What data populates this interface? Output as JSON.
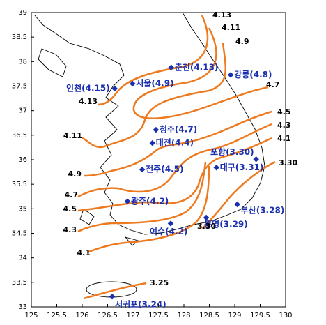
{
  "map": {
    "xlim": [
      125,
      130
    ],
    "ylim": [
      33,
      39
    ],
    "xticks": [
      125,
      125.5,
      126,
      126.5,
      127,
      127.5,
      128,
      128.5,
      129,
      129.5,
      130
    ],
    "yticks": [
      33,
      33.5,
      34,
      34.5,
      35,
      35.5,
      36,
      36.5,
      37,
      37.5,
      38,
      38.5,
      39
    ],
    "marker_color": "#1a2fb0",
    "stations": [
      {
        "label": "춘천(4.13)",
        "lon": 127.75,
        "lat": 37.88
      },
      {
        "label": "강릉(4.8)",
        "lon": 128.92,
        "lat": 37.73
      },
      {
        "label": "인천(4.15)",
        "lon": 126.64,
        "lat": 37.45
      },
      {
        "label": "서울(4.9)",
        "lon": 126.99,
        "lat": 37.55
      },
      {
        "label": "청주(4.7)",
        "lon": 127.45,
        "lat": 36.61
      },
      {
        "label": "대전(4.4)",
        "lon": 127.38,
        "lat": 36.34
      },
      {
        "label": "포항(3.30)",
        "lon": 129.42,
        "lat": 36.01
      },
      {
        "label": "대구(3.31)",
        "lon": 128.64,
        "lat": 35.84
      },
      {
        "label": "전주(4.5)",
        "lon": 127.18,
        "lat": 35.8
      },
      {
        "label": "광주(4.2)",
        "lon": 126.89,
        "lat": 35.15
      },
      {
        "label": "부산(3.28)",
        "lon": 129.05,
        "lat": 35.09
      },
      {
        "label": "통영(3.29)",
        "lon": 128.44,
        "lat": 34.82
      },
      {
        "label": "여수(4.2)",
        "lon": 127.74,
        "lat": 34.7
      },
      {
        "label": "서귀포(3.24)",
        "lon": 126.59,
        "lat": 33.21
      }
    ],
    "contour_labels": [
      "4.13",
      "4.11",
      "4.9",
      "4.7",
      "4.5",
      "4.3",
      "4.1",
      "3.30",
      "4.13",
      "4.11",
      "4.9",
      "4.7",
      "4.5",
      "4.3",
      "4.1",
      "3.30",
      "3.25"
    ]
  }
}
